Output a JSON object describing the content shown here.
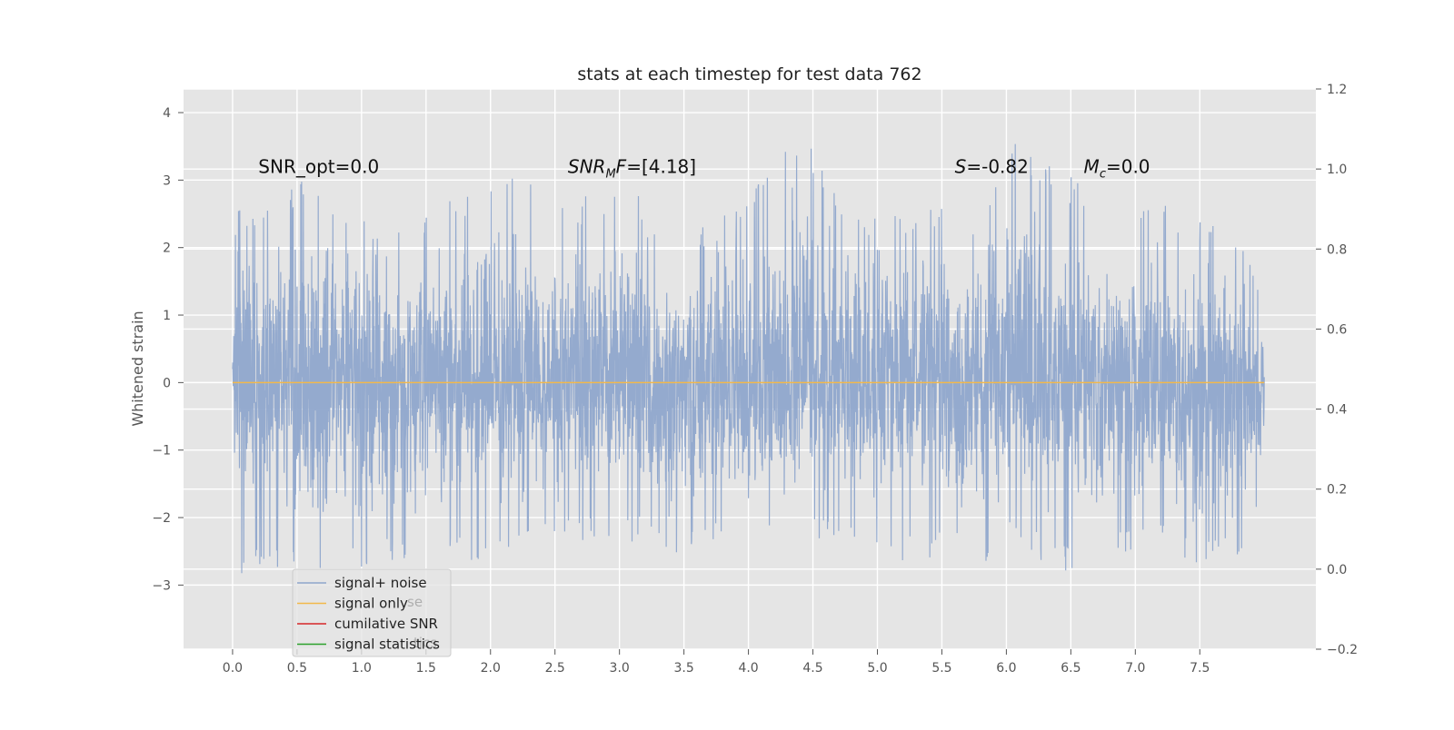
{
  "chart_data": {
    "type": "line",
    "title": "stats at each timestep for test data 762",
    "ylabel": "Whitened strain",
    "xlabel": "",
    "xlim": [
      -0.38,
      8.4
    ],
    "ylim": [
      -3.95,
      4.35
    ],
    "y2lim": [
      -0.2,
      1.2
    ],
    "grid": true,
    "x_ticks": [
      "0.0",
      "0.5",
      "1.0",
      "1.5",
      "2.0",
      "2.5",
      "3.0",
      "3.5",
      "4.0",
      "4.5",
      "5.0",
      "5.5",
      "6.0",
      "6.5",
      "7.0",
      "7.5"
    ],
    "y_ticks": [
      "−3",
      "−2",
      "−1",
      "0",
      "1",
      "2",
      "3",
      "4"
    ],
    "y2_ticks": [
      "−0.2",
      "0.0",
      "0.2",
      "0.4",
      "0.6",
      "0.8",
      "1.0",
      "1.2"
    ],
    "series": [
      {
        "name": "signal+ noise",
        "color": "#8fa6cc",
        "x_range": [
          0.0,
          8.0
        ],
        "envelope": [
          {
            "x": 0.0,
            "max": 1.0,
            "min": -1.8
          },
          {
            "x": 0.02,
            "max": 2.6,
            "min": -2.9
          },
          {
            "x": 0.3,
            "max": 2.7,
            "min": -2.8
          },
          {
            "x": 0.65,
            "max": 3.15,
            "min": -3.1
          },
          {
            "x": 0.75,
            "max": 2.9,
            "min": -3.0
          },
          {
            "x": 1.0,
            "max": 2.4,
            "min": -2.8
          },
          {
            "x": 1.5,
            "max": 2.5,
            "min": -2.6
          },
          {
            "x": 2.15,
            "max": 3.35,
            "min": -2.75
          },
          {
            "x": 2.25,
            "max": 3.35,
            "min": -2.4
          },
          {
            "x": 2.55,
            "max": 2.6,
            "min": -2.4
          },
          {
            "x": 3.05,
            "max": 3.1,
            "min": -2.3
          },
          {
            "x": 3.3,
            "max": 2.5,
            "min": -2.9
          },
          {
            "x": 3.55,
            "max": 2.2,
            "min": -2.55
          },
          {
            "x": 4.0,
            "max": 2.7,
            "min": -2.3
          },
          {
            "x": 4.35,
            "max": 4.0,
            "min": -2.4
          },
          {
            "x": 4.8,
            "max": 2.5,
            "min": -2.3
          },
          {
            "x": 5.2,
            "max": 2.6,
            "min": -2.7
          },
          {
            "x": 5.6,
            "max": 2.7,
            "min": -2.5
          },
          {
            "x": 5.75,
            "max": 2.5,
            "min": -2.8
          },
          {
            "x": 6.05,
            "max": 3.65,
            "min": -2.4
          },
          {
            "x": 6.5,
            "max": 3.1,
            "min": -2.9
          },
          {
            "x": 6.8,
            "max": 2.3,
            "min": -2.6
          },
          {
            "x": 7.2,
            "max": 2.7,
            "min": -2.3
          },
          {
            "x": 7.5,
            "max": 2.4,
            "min": -2.8
          },
          {
            "x": 7.8,
            "max": 2.3,
            "min": -2.6
          },
          {
            "x": 7.97,
            "max": 1.3,
            "min": -3.25
          },
          {
            "x": 8.0,
            "max": 0.5,
            "min": -1.2
          }
        ]
      },
      {
        "name": "signal only",
        "color": "#f2b84b",
        "x": [
          0.0,
          8.0
        ],
        "y": [
          0.0,
          0.0
        ]
      },
      {
        "name": "cumilative SNR",
        "color": "#d62728"
      },
      {
        "name": "signal statistics",
        "color": "#2ca02c"
      }
    ],
    "legend": {
      "placement": "lower-left",
      "ghost_text": [
        "se",
        "tics"
      ]
    },
    "annotations": [
      {
        "type": "plain",
        "text": "SNR_opt=0.0",
        "x": 0.2,
        "y": 3.2
      },
      {
        "type": "math",
        "base": "SNR",
        "sub": "M",
        "rest": "F=[4.18]",
        "x": 2.6,
        "y": 3.2
      },
      {
        "type": "math",
        "base": "S",
        "sub": "",
        "rest": "=-0.82",
        "x": 5.6,
        "y": 3.2
      },
      {
        "type": "math",
        "base": "M",
        "sub": "c",
        "rest": "=0.0",
        "x": 6.6,
        "y": 3.2
      }
    ]
  }
}
